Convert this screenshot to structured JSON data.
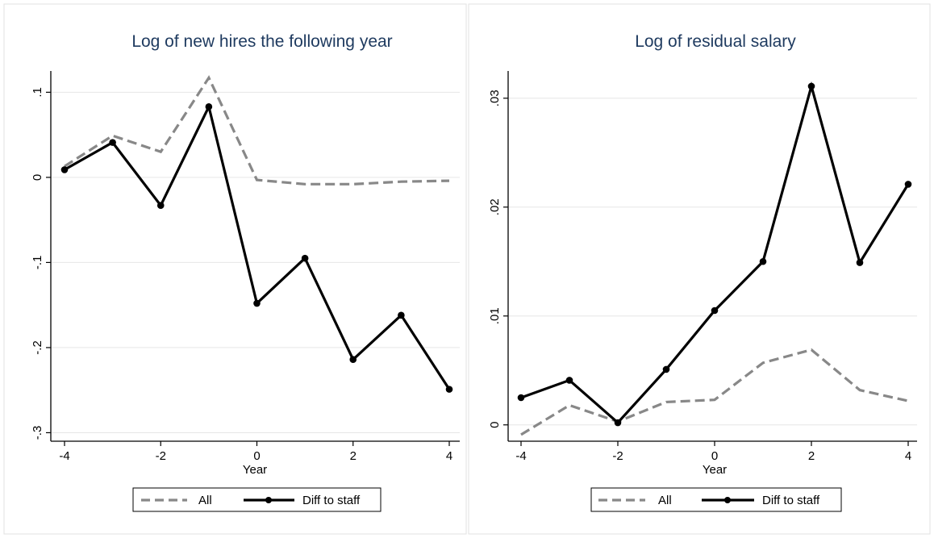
{
  "chart_data": [
    {
      "type": "line",
      "title": "Log of new hires the following year",
      "xlabel": "Year",
      "ylabel": "",
      "x": [
        -4,
        -3,
        -2,
        -1,
        0,
        1,
        2,
        3,
        4
      ],
      "xticks": [
        -4,
        -2,
        0,
        2,
        4
      ],
      "xtick_labels": [
        "-4",
        "-2",
        "0",
        "2",
        "4"
      ],
      "xlim": [
        -4,
        4
      ],
      "yticks": [
        0.1,
        0,
        -0.1,
        -0.2,
        -0.3
      ],
      "ytick_labels": [
        ".1",
        "0",
        "-.1",
        "-.2",
        "-.3"
      ],
      "ylim": [
        -0.31,
        0.125
      ],
      "grid": true,
      "legend_position": "bottom",
      "series": [
        {
          "name": "All",
          "style": "dashed",
          "color": "#888888",
          "markers": false,
          "values": [
            0.013,
            0.049,
            0.03,
            0.117,
            -0.003,
            -0.008,
            -0.008,
            -0.005,
            -0.004
          ]
        },
        {
          "name": "Diff to staff",
          "style": "solid",
          "color": "#000000",
          "markers": true,
          "values": [
            0.009,
            0.041,
            -0.033,
            0.083,
            -0.148,
            -0.095,
            -0.214,
            -0.162,
            -0.249
          ]
        }
      ]
    },
    {
      "type": "line",
      "title": "Log of residual salary",
      "xlabel": "Year",
      "ylabel": "",
      "x": [
        -4,
        -3,
        -2,
        -1,
        0,
        1,
        2,
        3,
        4
      ],
      "xticks": [
        -4,
        -2,
        0,
        2,
        4
      ],
      "xtick_labels": [
        "-4",
        "-2",
        "0",
        "2",
        "4"
      ],
      "xlim": [
        -4,
        4
      ],
      "yticks": [
        0.03,
        0.02,
        0.01,
        0
      ],
      "ytick_labels": [
        ".03",
        ".02",
        ".01",
        "0"
      ],
      "ylim": [
        -0.0015,
        0.0325
      ],
      "grid": true,
      "legend_position": "bottom",
      "series": [
        {
          "name": "All",
          "style": "dashed",
          "color": "#888888",
          "markers": false,
          "values": [
            -0.0009,
            0.0018,
            0.0003,
            0.0021,
            0.0023,
            0.0057,
            0.0069,
            0.0032,
            0.0022
          ]
        },
        {
          "name": "Diff to staff",
          "style": "solid",
          "color": "#000000",
          "markers": true,
          "values": [
            0.0025,
            0.0041,
            0.0002,
            0.0051,
            0.0105,
            0.015,
            0.0311,
            0.0149,
            0.0221
          ]
        }
      ]
    }
  ]
}
